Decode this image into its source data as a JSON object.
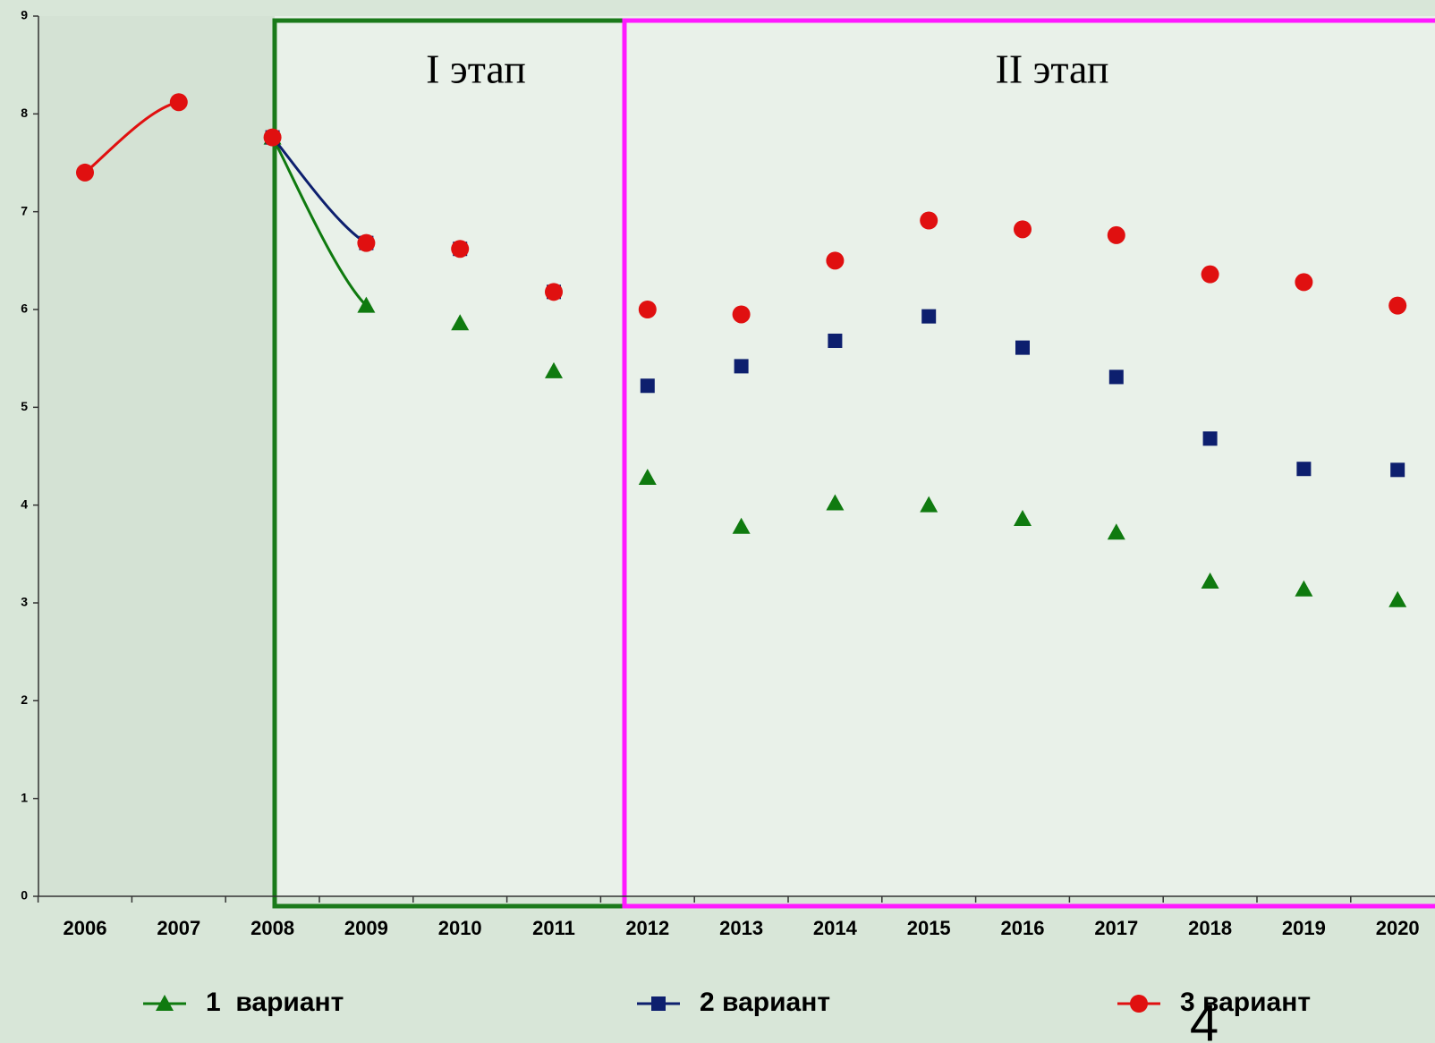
{
  "chart_data": {
    "type": "line",
    "annotations": [
      "I этап",
      "II этап",
      "4"
    ],
    "categories": [
      "2006",
      "2007",
      "2008",
      "2009",
      "2010",
      "2011",
      "2012",
      "2013",
      "2014",
      "2015",
      "2016",
      "2017",
      "2018",
      "2019",
      "2020"
    ],
    "series": [
      {
        "name": "1  вариант",
        "color": "#0f7a0f",
        "marker": "triangle",
        "values": [
          null,
          null,
          7.76,
          6.04,
          5.86,
          5.37,
          4.28,
          3.78,
          4.02,
          4.0,
          3.86,
          3.72,
          3.22,
          3.14,
          3.03
        ]
      },
      {
        "name": "2 вариант",
        "color": "#0d1f6e",
        "marker": "square",
        "values": [
          null,
          null,
          7.76,
          6.68,
          6.62,
          6.18,
          5.22,
          5.42,
          5.68,
          5.93,
          5.61,
          5.31,
          4.68,
          4.37,
          4.36
        ]
      },
      {
        "name": "3 вариант",
        "color": "#e01010",
        "marker": "circle",
        "values": [
          7.4,
          8.12,
          7.76,
          6.68,
          6.62,
          6.18,
          6.0,
          5.95,
          6.5,
          6.91,
          6.82,
          6.76,
          6.36,
          6.28,
          6.04
        ]
      }
    ],
    "ylim": [
      0,
      9
    ],
    "yticks": [
      0,
      1,
      2,
      3,
      4,
      5,
      6,
      7,
      8,
      9
    ],
    "smooth": true,
    "legend": "bottom"
  }
}
